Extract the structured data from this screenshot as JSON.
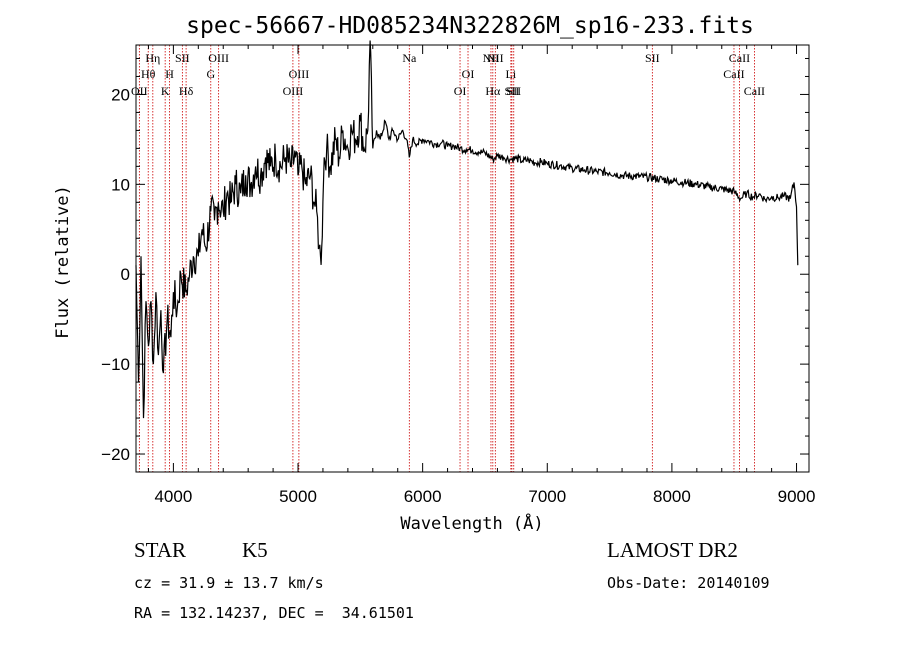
{
  "chart_data": {
    "type": "line",
    "title": "spec-56667-HD085234N322826M_sp16-233.fits",
    "xlabel": "Wavelength (Å)",
    "ylabel": "Flux (relative)",
    "xlim": [
      3700,
      9100
    ],
    "ylim": [
      -22,
      25.5
    ],
    "xticks": [
      4000,
      5000,
      6000,
      7000,
      8000,
      9000
    ],
    "yticks": [
      -20,
      -10,
      0,
      10,
      20
    ],
    "grid": false,
    "series": [
      {
        "values_x": [
          3700,
          3720,
          3740,
          3760,
          3780,
          3800,
          3820,
          3840,
          3860,
          3880,
          3900,
          3920,
          3950,
          3980,
          4000,
          4030,
          4060,
          4100,
          4130,
          4160,
          4200,
          4230,
          4260,
          4300,
          4330,
          4360,
          4400,
          4430,
          4460,
          4500,
          4540,
          4580,
          4620,
          4660,
          4700,
          4740,
          4780,
          4820,
          4860,
          4900,
          4940,
          4980,
          5000,
          5030,
          5060,
          5100,
          5130,
          5150,
          5170,
          5180,
          5190,
          5200,
          5210,
          5230,
          5260,
          5300,
          5330,
          5360,
          5400,
          5430,
          5460,
          5500,
          5530,
          5560,
          5578,
          5600,
          5630,
          5660,
          5700,
          5730,
          5760,
          5800,
          5840,
          5870,
          5893,
          5920,
          5960,
          6000,
          6050,
          6100,
          6150,
          6200,
          6250,
          6300,
          6350,
          6400,
          6450,
          6500,
          6563,
          6600,
          6650,
          6700,
          6750,
          6800,
          6850,
          6900,
          6950,
          7000,
          7100,
          7200,
          7300,
          7400,
          7500,
          7600,
          7700,
          7800,
          7900,
          8000,
          8100,
          8200,
          8300,
          8400,
          8500,
          8550,
          8600,
          8650,
          8700,
          8750,
          8800,
          8850,
          8900,
          8950,
          8980,
          9000,
          9010
        ],
        "values_y": [
          1,
          -12,
          2,
          -16,
          -3,
          -8,
          -3,
          -10,
          -2,
          -9,
          -4,
          -11,
          -5,
          -7,
          -2,
          -4,
          0,
          -2,
          0,
          2,
          2,
          5,
          3,
          7,
          6,
          8,
          7,
          9,
          8,
          10,
          9,
          11,
          10,
          12,
          11,
          13,
          12,
          13,
          12,
          13,
          12,
          13,
          11,
          12,
          10,
          11,
          8,
          7,
          3,
          2,
          3,
          8,
          13,
          14,
          12,
          15,
          13,
          16,
          14,
          16,
          15,
          17,
          14,
          16,
          26,
          14,
          16,
          15,
          17,
          15,
          16,
          15,
          16,
          15,
          13,
          15,
          14.5,
          15,
          14.8,
          14.5,
          14.6,
          14.2,
          14.3,
          14.0,
          13.9,
          13.8,
          13.6,
          13.5,
          12.8,
          13.2,
          13.0,
          12.8,
          12.9,
          12.6,
          12.7,
          12.4,
          12.5,
          12.3,
          12.1,
          11.8,
          11.6,
          11.4,
          11.3,
          11.0,
          10.9,
          10.8,
          10.6,
          10.4,
          10.2,
          10.0,
          9.7,
          9.5,
          9.2,
          8.4,
          9.0,
          8.6,
          8.9,
          8.3,
          8.6,
          8.5,
          8.7,
          8.4,
          10.2,
          7.5,
          1
        ]
      }
    ],
    "lines": [
      {
        "wl": 3727,
        "label": "OII",
        "row": 3
      },
      {
        "wl": 3798,
        "label": "Hθ",
        "row": 2
      },
      {
        "wl": 3835,
        "label": "Hη",
        "row": 1
      },
      {
        "wl": 3934,
        "label": "K",
        "row": 3
      },
      {
        "wl": 3969,
        "label": "H",
        "row": 2
      },
      {
        "wl": 4072,
        "label": "SII",
        "row": 1
      },
      {
        "wl": 4102,
        "label": "Hδ",
        "row": 3
      },
      {
        "wl": 4300,
        "label": "G",
        "row": 2
      },
      {
        "wl": 4363,
        "label": "OIII",
        "row": 1
      },
      {
        "wl": 4959,
        "label": "OIII",
        "row": 3
      },
      {
        "wl": 5007,
        "label": "OIII",
        "row": 2
      },
      {
        "wl": 5893,
        "label": "Na",
        "row": 1
      },
      {
        "wl": 6300,
        "label": "OI",
        "row": 3
      },
      {
        "wl": 6364,
        "label": "OI",
        "row": 2
      },
      {
        "wl": 6548,
        "label": "NII",
        "row": 1
      },
      {
        "wl": 6563,
        "label": "Hα",
        "row": 3
      },
      {
        "wl": 6583,
        "label": "NII",
        "row": 1
      },
      {
        "wl": 6708,
        "label": "Li",
        "row": 2
      },
      {
        "wl": 6716,
        "label": "SII",
        "row": 3
      },
      {
        "wl": 6731,
        "label": "SII",
        "row": 3
      },
      {
        "wl": 7843,
        "label": "SII",
        "row": 1
      },
      {
        "wl": 8498,
        "label": "CaII",
        "row": 2
      },
      {
        "wl": 8542,
        "label": "CaII",
        "row": 1
      },
      {
        "wl": 8662,
        "label": "CaII",
        "row": 3
      }
    ]
  },
  "info": {
    "class": "STAR",
    "subclass": "K5",
    "cz": "cz = 31.9 ± 13.7 km/s",
    "radec": "RA = 132.14237, DEC =  34.61501",
    "survey": "LAMOST DR2",
    "obsdate": "Obs-Date: 20140109"
  },
  "colors": {
    "spectrum": "#000000",
    "line_markers": "#cc0000",
    "axes": "#000000"
  }
}
